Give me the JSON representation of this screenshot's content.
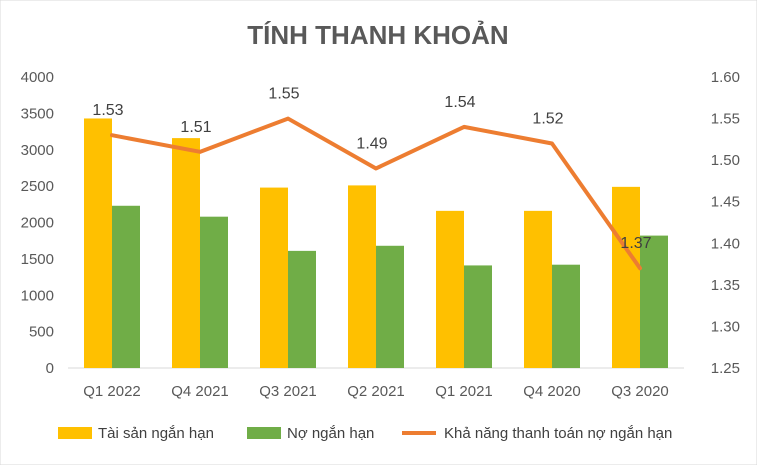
{
  "chart_data": {
    "type": "bar",
    "title": "TÍNH THANH KHOẢN",
    "categories": [
      "Q1 2022",
      "Q4 2021",
      "Q3 2021",
      "Q2 2021",
      "Q1 2021",
      "Q4 2020",
      "Q3 2020"
    ],
    "series": [
      {
        "name": "Tài sản ngắn hạn",
        "type": "bar",
        "axis": "left",
        "color": "#FFC000",
        "values": [
          3430,
          3160,
          2480,
          2510,
          2160,
          2160,
          2490
        ]
      },
      {
        "name": "Nợ ngắn hạn",
        "type": "bar",
        "axis": "left",
        "color": "#70AD47",
        "values": [
          2230,
          2080,
          1610,
          1680,
          1410,
          1420,
          1820
        ]
      },
      {
        "name": "Khả năng thanh toán nợ ngắn hạn",
        "type": "line",
        "axis": "right",
        "color": "#ED7D31",
        "values": [
          1.53,
          1.51,
          1.55,
          1.49,
          1.54,
          1.52,
          1.37
        ],
        "labels": [
          "1.53",
          "1.51",
          "1.55",
          "1.49",
          "1.54",
          "1.52",
          "1.37"
        ]
      }
    ],
    "y_left": {
      "min": 0,
      "max": 4000,
      "ticks": [
        "0",
        "500",
        "1000",
        "1500",
        "2000",
        "2500",
        "3000",
        "3500",
        "4000"
      ]
    },
    "y_right": {
      "min": 1.25,
      "max": 1.6,
      "ticks": [
        "1.25",
        "1.30",
        "1.35",
        "1.40",
        "1.45",
        "1.50",
        "1.55",
        "1.60"
      ]
    },
    "grid": false,
    "legend": "bottom"
  }
}
